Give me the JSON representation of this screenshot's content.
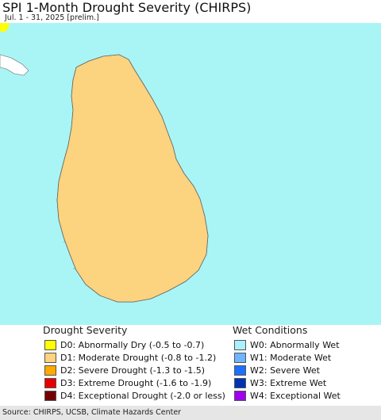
{
  "header": {
    "title": "SPI 1-Month Drought Severity (CHIRPS)",
    "subtitle": "Jul. 1 - 31, 2025 [prelim.]"
  },
  "map": {
    "ocean_color": "#a9f5f5",
    "land_color": "#ffffff",
    "boundary_color": "#8c8c8c"
  },
  "legend": {
    "drought": {
      "title": "Drought Severity",
      "items": [
        {
          "label": "D0: Abnormally Dry (-0.5 to -0.7)",
          "color": "#ffff00"
        },
        {
          "label": "D1: Moderate Drought (-0.8 to -1.2)",
          "color": "#fcd37f"
        },
        {
          "label": "D2: Severe Drought (-1.3 to -1.5)",
          "color": "#ffaa00"
        },
        {
          "label": "D3: Extreme Drought (-1.6 to -1.9)",
          "color": "#e60000"
        },
        {
          "label": "D4: Exceptional Drought (-2.0 or less)",
          "color": "#730000"
        }
      ]
    },
    "wet": {
      "title": "Wet Conditions",
      "items": [
        {
          "label": "W0: Abnormally Wet",
          "color": "#aaf0ff"
        },
        {
          "label": "W1: Moderate Wet",
          "color": "#6eb4ff"
        },
        {
          "label": "W2: Severe Wet",
          "color": "#1e6eff"
        },
        {
          "label": "W3: Extreme Wet",
          "color": "#0032b4"
        },
        {
          "label": "W4: Exceptional Wet",
          "color": "#a000f0"
        }
      ]
    }
  },
  "footer": {
    "source": "Source: CHIRPS, UCSB, Climate Hazards Center"
  }
}
